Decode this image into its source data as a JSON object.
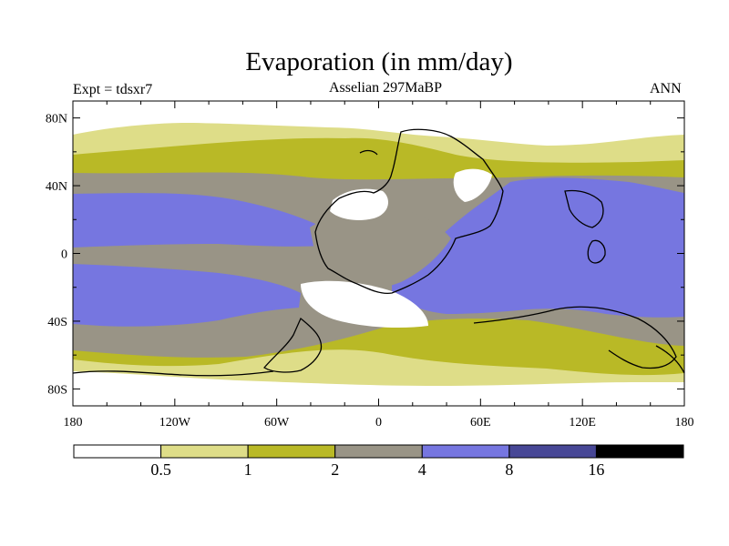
{
  "title": "Evaporation (in mm/day)",
  "experiment_label": "Expt = tdsxr7",
  "period_label": "Asselian 297MaBP",
  "season_label": "ANN",
  "y_axis_ticks": [
    "80N",
    "40N",
    "0",
    "40S",
    "80S"
  ],
  "x_axis_ticks": [
    "180",
    "120W",
    "60W",
    "0",
    "60E",
    "120E",
    "180"
  ],
  "colorbar": {
    "levels": [
      "0.5",
      "1",
      "2",
      "4",
      "8",
      "16"
    ],
    "colors": [
      "#ffffff",
      "#dedd88",
      "#b9b926",
      "#999486",
      "#7676e0",
      "#474796",
      "#000000"
    ]
  }
}
